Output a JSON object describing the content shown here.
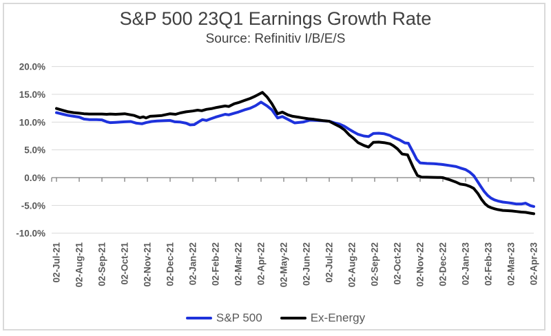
{
  "title": "S&P 500 23Q1 Earnings Growth Rate",
  "subtitle": "Source: Refinitiv I/B/E/S",
  "colors": {
    "sp500_line": "#1e32dc",
    "ex_energy_line": "#000000",
    "gridline": "#d9d9d9",
    "axis": "#7f7f7f",
    "title_text": "#404040",
    "tick_text": "#595959"
  },
  "chart_data": {
    "type": "line",
    "title": "S&P 500 23Q1 Earnings Growth Rate",
    "subtitle": "Source: Refinitiv I/B/E/S",
    "grid": true,
    "legend_position": "bottom",
    "ylim": [
      -10,
      20
    ],
    "y_ticks": [
      {
        "v": 20,
        "label": "20.0%"
      },
      {
        "v": 15,
        "label": "15.0%"
      },
      {
        "v": 10,
        "label": "10.0%"
      },
      {
        "v": 5,
        "label": "5.0%"
      },
      {
        "v": 0,
        "label": "0.0%"
      },
      {
        "v": -5,
        "label": "-5.0%"
      },
      {
        "v": -10,
        "label": "-10.0%"
      }
    ],
    "x_tick_labels": [
      "02-Jul-21",
      "02-Aug-21",
      "02-Sep-21",
      "02-Oct-21",
      "02-Nov-21",
      "02-Dec-21",
      "02-Jan-22",
      "02-Feb-22",
      "02-Mar-22",
      "02-Apr-22",
      "02-May-22",
      "02-Jun-22",
      "02-Jul-22",
      "02-Aug-22",
      "02-Sep-22",
      "02-Oct-22",
      "02-Nov-22",
      "02-Dec-22",
      "02-Jan-23",
      "02-Feb-23",
      "02-Mar-23",
      "02-Apr-23"
    ],
    "series": [
      {
        "name": "S&P 500",
        "color": "#1e32dc",
        "points": [
          [
            0,
            11.7
          ],
          [
            0.3,
            11.4
          ],
          [
            0.52,
            11.2
          ],
          [
            0.76,
            11.05
          ],
          [
            1,
            10.9
          ],
          [
            1.21,
            10.55
          ],
          [
            1.45,
            10.45
          ],
          [
            1.76,
            10.45
          ],
          [
            2,
            10.4
          ],
          [
            2.21,
            10.05
          ],
          [
            2.36,
            9.9
          ],
          [
            2.6,
            9.95
          ],
          [
            2.82,
            10.0
          ],
          [
            3,
            10.05
          ],
          [
            3.27,
            10.1
          ],
          [
            3.52,
            9.8
          ],
          [
            3.76,
            9.7
          ],
          [
            3.94,
            9.9
          ],
          [
            4.18,
            10.1
          ],
          [
            4.42,
            10.2
          ],
          [
            4.73,
            10.25
          ],
          [
            5,
            10.3
          ],
          [
            5.21,
            10.05
          ],
          [
            5.45,
            10.0
          ],
          [
            5.7,
            9.8
          ],
          [
            5.88,
            9.5
          ],
          [
            6.06,
            9.55
          ],
          [
            6.24,
            10.0
          ],
          [
            6.42,
            10.45
          ],
          [
            6.6,
            10.3
          ],
          [
            6.79,
            10.6
          ],
          [
            7,
            10.9
          ],
          [
            7.21,
            11.15
          ],
          [
            7.42,
            11.4
          ],
          [
            7.58,
            11.3
          ],
          [
            7.82,
            11.6
          ],
          [
            8,
            11.8
          ],
          [
            8.27,
            12.2
          ],
          [
            8.52,
            12.5
          ],
          [
            8.76,
            12.95
          ],
          [
            9,
            13.6
          ],
          [
            9.27,
            12.9
          ],
          [
            9.48,
            12.2
          ],
          [
            9.73,
            10.75
          ],
          [
            9.94,
            11.0
          ],
          [
            10.18,
            10.5
          ],
          [
            10.48,
            9.85
          ],
          [
            10.85,
            10.0
          ],
          [
            11.15,
            10.35
          ],
          [
            11.45,
            10.3
          ],
          [
            11.67,
            10.25
          ],
          [
            12,
            10.15
          ],
          [
            12.24,
            9.85
          ],
          [
            12.48,
            9.6
          ],
          [
            12.67,
            9.25
          ],
          [
            12.88,
            8.7
          ],
          [
            13.06,
            8.25
          ],
          [
            13.27,
            7.8
          ],
          [
            13.52,
            7.5
          ],
          [
            13.73,
            7.4
          ],
          [
            13.94,
            7.95
          ],
          [
            14.18,
            8.0
          ],
          [
            14.42,
            7.9
          ],
          [
            14.67,
            7.6
          ],
          [
            14.82,
            7.25
          ],
          [
            15.09,
            6.8
          ],
          [
            15.33,
            6.25
          ],
          [
            15.48,
            6.2
          ],
          [
            15.7,
            4.5
          ],
          [
            15.85,
            3.3
          ],
          [
            16,
            2.65
          ],
          [
            16.3,
            2.55
          ],
          [
            16.6,
            2.5
          ],
          [
            16.9,
            2.4
          ],
          [
            17,
            2.35
          ],
          [
            17.27,
            2.2
          ],
          [
            17.58,
            2.0
          ],
          [
            17.76,
            1.75
          ],
          [
            18,
            1.45
          ],
          [
            18.18,
            1.0
          ],
          [
            18.36,
            0.35
          ],
          [
            18.48,
            -0.4
          ],
          [
            18.67,
            -1.6
          ],
          [
            18.82,
            -2.5
          ],
          [
            18.97,
            -3.2
          ],
          [
            19.12,
            -3.7
          ],
          [
            19.27,
            -4.0
          ],
          [
            19.42,
            -4.2
          ],
          [
            19.64,
            -4.4
          ],
          [
            19.85,
            -4.5
          ],
          [
            20.03,
            -4.6
          ],
          [
            20.24,
            -4.75
          ],
          [
            20.45,
            -4.75
          ],
          [
            20.64,
            -4.6
          ],
          [
            20.85,
            -5.05
          ],
          [
            21,
            -5.2
          ]
        ]
      },
      {
        "name": "Ex-Energy",
        "color": "#000000",
        "points": [
          [
            0,
            12.45
          ],
          [
            0.3,
            12.1
          ],
          [
            0.52,
            11.85
          ],
          [
            0.76,
            11.7
          ],
          [
            1,
            11.6
          ],
          [
            1.21,
            11.5
          ],
          [
            1.45,
            11.45
          ],
          [
            1.76,
            11.45
          ],
          [
            2,
            11.45
          ],
          [
            2.21,
            11.4
          ],
          [
            2.36,
            11.45
          ],
          [
            2.6,
            11.4
          ],
          [
            2.82,
            11.45
          ],
          [
            3,
            11.5
          ],
          [
            3.27,
            11.3
          ],
          [
            3.42,
            11.2
          ],
          [
            3.67,
            10.8
          ],
          [
            3.82,
            10.95
          ],
          [
            3.94,
            10.75
          ],
          [
            4.12,
            11.05
          ],
          [
            4.33,
            11.1
          ],
          [
            4.64,
            11.2
          ],
          [
            5,
            11.5
          ],
          [
            5.24,
            11.4
          ],
          [
            5.45,
            11.65
          ],
          [
            5.7,
            11.85
          ],
          [
            6,
            12.0
          ],
          [
            6.21,
            12.15
          ],
          [
            6.39,
            12.05
          ],
          [
            6.6,
            12.3
          ],
          [
            6.85,
            12.45
          ],
          [
            7,
            12.6
          ],
          [
            7.21,
            12.75
          ],
          [
            7.42,
            12.9
          ],
          [
            7.58,
            12.8
          ],
          [
            7.82,
            13.3
          ],
          [
            8,
            13.5
          ],
          [
            8.27,
            13.9
          ],
          [
            8.52,
            14.25
          ],
          [
            8.76,
            14.7
          ],
          [
            9.06,
            15.35
          ],
          [
            9.27,
            14.5
          ],
          [
            9.48,
            13.3
          ],
          [
            9.73,
            11.5
          ],
          [
            9.94,
            11.8
          ],
          [
            10.18,
            11.3
          ],
          [
            10.39,
            11.05
          ],
          [
            10.64,
            10.9
          ],
          [
            10.85,
            10.75
          ],
          [
            11.09,
            10.6
          ],
          [
            11.33,
            10.5
          ],
          [
            11.58,
            10.35
          ],
          [
            11.76,
            10.25
          ],
          [
            12,
            10.15
          ],
          [
            12.24,
            9.65
          ],
          [
            12.48,
            9.15
          ],
          [
            12.67,
            8.6
          ],
          [
            12.88,
            7.7
          ],
          [
            13.06,
            7.1
          ],
          [
            13.27,
            6.3
          ],
          [
            13.52,
            5.8
          ],
          [
            13.73,
            5.5
          ],
          [
            13.94,
            6.35
          ],
          [
            14.18,
            6.4
          ],
          [
            14.42,
            6.3
          ],
          [
            14.67,
            6.1
          ],
          [
            14.82,
            5.75
          ],
          [
            15,
            5.2
          ],
          [
            15.21,
            4.25
          ],
          [
            15.45,
            4.1
          ],
          [
            15.7,
            1.8
          ],
          [
            15.88,
            0.4
          ],
          [
            16.06,
            0.1
          ],
          [
            16.3,
            0.08
          ],
          [
            16.6,
            0.05
          ],
          [
            16.9,
            0.02
          ],
          [
            17,
            0.0
          ],
          [
            17.27,
            -0.35
          ],
          [
            17.58,
            -0.8
          ],
          [
            17.76,
            -1.15
          ],
          [
            18,
            -1.3
          ],
          [
            18.2,
            -1.6
          ],
          [
            18.36,
            -1.95
          ],
          [
            18.55,
            -2.9
          ],
          [
            18.7,
            -3.9
          ],
          [
            18.85,
            -4.7
          ],
          [
            19,
            -5.2
          ],
          [
            19.12,
            -5.4
          ],
          [
            19.27,
            -5.6
          ],
          [
            19.42,
            -5.75
          ],
          [
            19.64,
            -5.9
          ],
          [
            19.85,
            -5.95
          ],
          [
            20.03,
            -6.0
          ],
          [
            20.24,
            -6.1
          ],
          [
            20.45,
            -6.2
          ],
          [
            20.64,
            -6.25
          ],
          [
            20.85,
            -6.4
          ],
          [
            21,
            -6.5
          ]
        ]
      }
    ]
  }
}
